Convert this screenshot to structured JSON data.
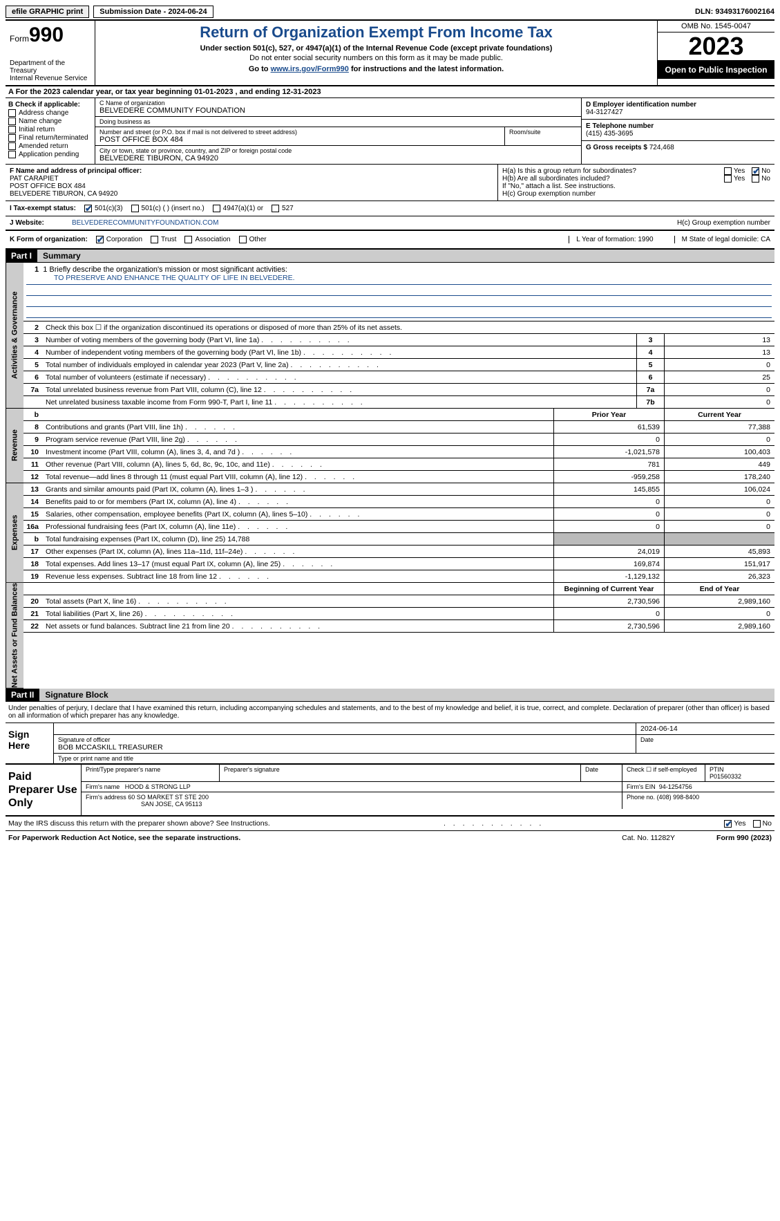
{
  "topbar": {
    "efile": "efile GRAPHIC print",
    "submission": "Submission Date - 2024-06-24",
    "dln": "DLN: 93493176002164"
  },
  "header": {
    "form_label": "Form",
    "form_num": "990",
    "dept": "Department of the Treasury",
    "irs": "Internal Revenue Service",
    "title": "Return of Organization Exempt From Income Tax",
    "sub1": "Under section 501(c), 527, or 4947(a)(1) of the Internal Revenue Code (except private foundations)",
    "sub2": "Do not enter social security numbers on this form as it may be made public.",
    "goto_pre": "Go to ",
    "goto_url": "www.irs.gov/Form990",
    "goto_post": " for instructions and the latest information.",
    "omb": "OMB No. 1545-0047",
    "year": "2023",
    "open_pub": "Open to Public Inspection"
  },
  "row_a": "A For the 2023 calendar year, or tax year beginning 01-01-2023   , and ending 12-31-2023",
  "box_b": {
    "hdr": "B Check if applicable:",
    "opts": [
      "Address change",
      "Name change",
      "Initial return",
      "Final return/terminated",
      "Amended return",
      "Application pending"
    ]
  },
  "box_c": {
    "name_lbl": "C Name of organization",
    "name": "BELVEDERE COMMUNITY FOUNDATION",
    "dba_lbl": "Doing business as",
    "dba": "",
    "addr_lbl": "Number and street (or P.O. box if mail is not delivered to street address)",
    "addr": "POST OFFICE BOX 484",
    "room_lbl": "Room/suite",
    "room": "",
    "city_lbl": "City or town, state or province, country, and ZIP or foreign postal code",
    "city": "BELVEDERE TIBURON, CA  94920"
  },
  "box_d": {
    "lbl": "D Employer identification number",
    "val": "94-3127427"
  },
  "box_e": {
    "lbl": "E Telephone number",
    "val": "(415) 435-3695"
  },
  "box_g": {
    "lbl": "G Gross receipts $",
    "val": "724,468"
  },
  "box_f": {
    "lbl": "F Name and address of principal officer:",
    "name": "PAT CARAPIET",
    "addr1": "POST OFFICE BOX 484",
    "addr2": "BELVEDERE TIBURON, CA  94920"
  },
  "box_h": {
    "a": "H(a)  Is this a group return for subordinates?",
    "b": "H(b)  Are all subordinates included?",
    "b2": "If \"No,\" attach a list. See instructions.",
    "c": "H(c)  Group exemption number"
  },
  "status": {
    "lbl": "I   Tax-exempt status:",
    "o1": "501(c)(3)",
    "o2": "501(c) (  ) (insert no.)",
    "o3": "4947(a)(1) or",
    "o4": "527"
  },
  "website": {
    "j": "J   Website:",
    "url": "BELVEDERECOMMUNITYFOUNDATION.COM"
  },
  "row_k": {
    "lbl": "K Form of organization:",
    "o1": "Corporation",
    "o2": "Trust",
    "o3": "Association",
    "o4": "Other",
    "l": "L Year of formation: 1990",
    "m": "M State of legal domicile: CA"
  },
  "part1": {
    "num": "Part I",
    "title": "Summary"
  },
  "vtabs": {
    "gov": "Activities & Governance",
    "rev": "Revenue",
    "exp": "Expenses",
    "net": "Net Assets or Fund Balances"
  },
  "mission": {
    "lbl": "1   Briefly describe the organization's mission or most significant activities:",
    "txt": "TO PRESERVE AND ENHANCE THE QUALITY OF LIFE IN BELVEDERE."
  },
  "gov_lines": [
    {
      "n": "2",
      "t": "Check this box   ☐   if the organization discontinued its operations or disposed of more than 25% of its net assets."
    },
    {
      "n": "3",
      "t": "Number of voting members of the governing body (Part VI, line 1a)",
      "box": "3",
      "v": "13"
    },
    {
      "n": "4",
      "t": "Number of independent voting members of the governing body (Part VI, line 1b)",
      "box": "4",
      "v": "13"
    },
    {
      "n": "5",
      "t": "Total number of individuals employed in calendar year 2023 (Part V, line 2a)",
      "box": "5",
      "v": "0"
    },
    {
      "n": "6",
      "t": "Total number of volunteers (estimate if necessary)",
      "box": "6",
      "v": "25"
    },
    {
      "n": "7a",
      "t": "Total unrelated business revenue from Part VIII, column (C), line 12",
      "box": "7a",
      "v": "0"
    },
    {
      "n": "",
      "t": "Net unrelated business taxable income from Form 990-T, Part I, line 11",
      "box": "7b",
      "v": "0"
    }
  ],
  "col_hdrs": {
    "b": "b",
    "prior": "Prior Year",
    "curr": "Current Year"
  },
  "rev_lines": [
    {
      "n": "8",
      "t": "Contributions and grants (Part VIII, line 1h)",
      "p": "61,539",
      "c": "77,388"
    },
    {
      "n": "9",
      "t": "Program service revenue (Part VIII, line 2g)",
      "p": "0",
      "c": "0"
    },
    {
      "n": "10",
      "t": "Investment income (Part VIII, column (A), lines 3, 4, and 7d )",
      "p": "-1,021,578",
      "c": "100,403"
    },
    {
      "n": "11",
      "t": "Other revenue (Part VIII, column (A), lines 5, 6d, 8c, 9c, 10c, and 11e)",
      "p": "781",
      "c": "449"
    },
    {
      "n": "12",
      "t": "Total revenue—add lines 8 through 11 (must equal Part VIII, column (A), line 12)",
      "p": "-959,258",
      "c": "178,240"
    }
  ],
  "exp_lines": [
    {
      "n": "13",
      "t": "Grants and similar amounts paid (Part IX, column (A), lines 1–3 )",
      "p": "145,855",
      "c": "106,024"
    },
    {
      "n": "14",
      "t": "Benefits paid to or for members (Part IX, column (A), line 4)",
      "p": "0",
      "c": "0"
    },
    {
      "n": "15",
      "t": "Salaries, other compensation, employee benefits (Part IX, column (A), lines 5–10)",
      "p": "0",
      "c": "0"
    },
    {
      "n": "16a",
      "t": "Professional fundraising fees (Part IX, column (A), line 11e)",
      "p": "0",
      "c": "0"
    },
    {
      "n": "b",
      "t": "Total fundraising expenses (Part IX, column (D), line 25) 14,788",
      "shade": true
    },
    {
      "n": "17",
      "t": "Other expenses (Part IX, column (A), lines 11a–11d, 11f–24e)",
      "p": "24,019",
      "c": "45,893"
    },
    {
      "n": "18",
      "t": "Total expenses. Add lines 13–17 (must equal Part IX, column (A), line 25)",
      "p": "169,874",
      "c": "151,917"
    },
    {
      "n": "19",
      "t": "Revenue less expenses. Subtract line 18 from line 12",
      "p": "-1,129,132",
      "c": "26,323"
    }
  ],
  "net_hdrs": {
    "beg": "Beginning of Current Year",
    "end": "End of Year"
  },
  "net_lines": [
    {
      "n": "20",
      "t": "Total assets (Part X, line 16)",
      "p": "2,730,596",
      "c": "2,989,160"
    },
    {
      "n": "21",
      "t": "Total liabilities (Part X, line 26)",
      "p": "0",
      "c": "0"
    },
    {
      "n": "22",
      "t": "Net assets or fund balances. Subtract line 21 from line 20",
      "p": "2,730,596",
      "c": "2,989,160"
    }
  ],
  "part2": {
    "num": "Part II",
    "title": "Signature Block"
  },
  "sig": {
    "decl": "Under penalties of perjury, I declare that I have examined this return, including accompanying schedules and statements, and to the best of my knowledge and belief, it is true, correct, and complete. Declaration of preparer (other than officer) is based on all information of which preparer has any knowledge.",
    "sign_here": "Sign Here",
    "sig_officer": "Signature of officer",
    "officer": "BOB MCCASKILL TREASURER",
    "type_name": "Type or print name and title",
    "date_lbl": "Date",
    "date": "2024-06-14",
    "paid": "Paid Preparer Use Only",
    "prep_name_lbl": "Print/Type preparer's name",
    "prep_sig_lbl": "Preparer's signature",
    "check_self": "Check ☐ if self-employed",
    "ptin_lbl": "PTIN",
    "ptin": "P01560332",
    "firm_name_lbl": "Firm's name",
    "firm_name": "HOOD & STRONG LLP",
    "firm_ein_lbl": "Firm's EIN",
    "firm_ein": "94-1254756",
    "firm_addr_lbl": "Firm's address",
    "firm_addr1": "60 SO MARKET ST STE 200",
    "firm_addr2": "SAN JOSE, CA  95113",
    "phone_lbl": "Phone no.",
    "phone": "(408) 998-8400",
    "discuss": "May the IRS discuss this return with the preparer shown above? See Instructions.",
    "yes": "Yes",
    "no": "No"
  },
  "footer": {
    "pra": "For Paperwork Reduction Act Notice, see the separate instructions.",
    "cat": "Cat. No. 11282Y",
    "form": "Form 990 (2023)"
  },
  "yn": {
    "yes": "Yes",
    "no": "No"
  }
}
